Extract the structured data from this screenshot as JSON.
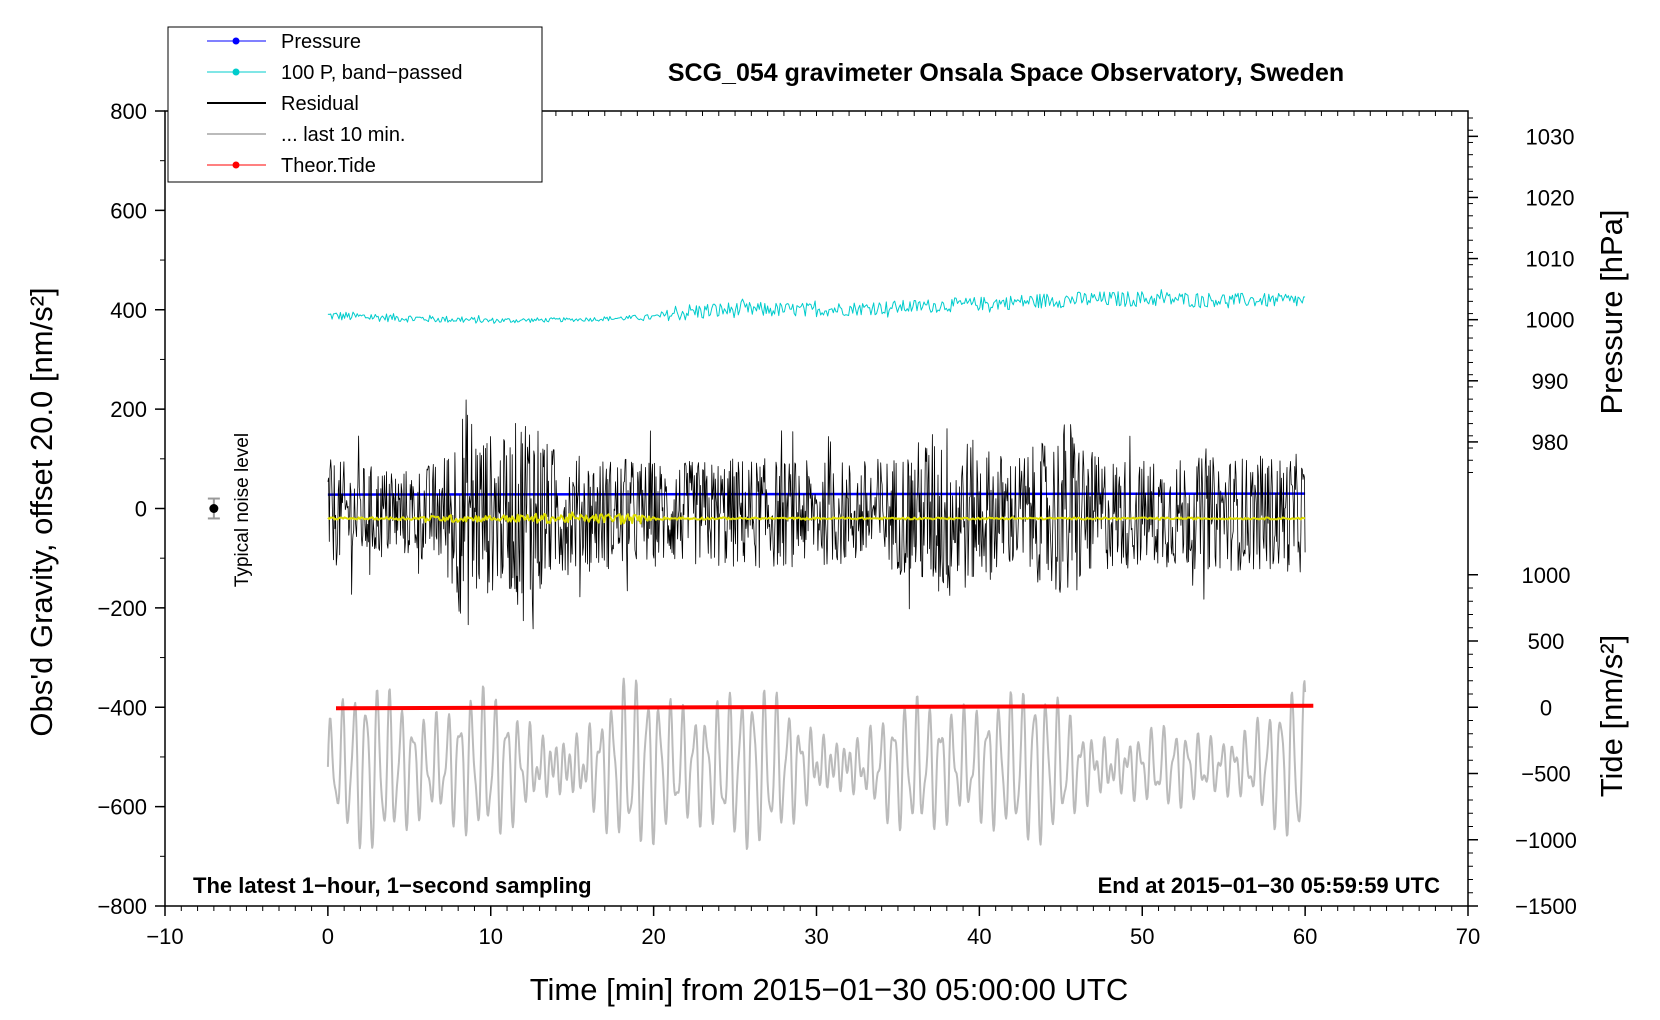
{
  "chart_data": {
    "type": "line",
    "title": "SCG_054 gravimeter Onsala Space Observatory, Sweden",
    "xlabel": "Time [min] from 2015−01−30 05:00:00 UTC",
    "ylabel_left": "Obs'd Gravity, offset 20.0 [nm/s²]",
    "ylabel_right_top": "Pressure [hPa]",
    "ylabel_right_bottom": "Tide [nm/s²]",
    "xlim": [
      -10,
      70
    ],
    "ylim_left": [
      -800,
      800
    ],
    "x_ticks": [
      -10,
      0,
      10,
      20,
      30,
      40,
      50,
      60,
      70
    ],
    "x_tick_labels": [
      "−10",
      "0",
      "10",
      "20",
      "30",
      "40",
      "50",
      "60",
      "70"
    ],
    "y_left_ticks": [
      800,
      600,
      400,
      200,
      0,
      -200,
      -400,
      -600,
      -800
    ],
    "y_left_tick_labels": [
      "800",
      "600",
      "400",
      "200",
      "0",
      "−200",
      "−400",
      "−600",
      "−800"
    ],
    "pressure_axis": {
      "ticks": [
        1030,
        1020,
        1010,
        1000,
        990,
        980
      ],
      "tick_labels": [
        "1030",
        "1020",
        "1010",
        "1000",
        "990",
        "980"
      ],
      "map_hpa": [
        1000,
        990
      ],
      "map_nm_s2": [
        380,
        257
      ]
    },
    "tide_axis": {
      "ticks": [
        1000,
        500,
        0,
        -500,
        -1000,
        -1500
      ],
      "tick_labels": [
        "1000",
        "500",
        "0",
        "−500",
        "−1000",
        "−1500"
      ],
      "map_tide": [
        0,
        -1500
      ],
      "map_nm_s2": [
        -400,
        -800
      ]
    },
    "legend": [
      {
        "label": "Pressure",
        "color": "#0000ff",
        "marker": true
      },
      {
        "label": "100 P, band−passed",
        "color": "#00cccc",
        "marker": true
      },
      {
        "label": "Residual",
        "color": "#000000",
        "marker": false
      },
      {
        "label": "... last 10 min.",
        "color": "#bbbbbb",
        "marker": false
      },
      {
        "label": "Theor.Tide",
        "color": "#ff0000",
        "marker": true
      }
    ],
    "annotation_left": "The latest 1−hour, 1−second sampling",
    "annotation_right": "End at 2015−01−30 05:59:59 UTC",
    "noise_label": "Typical noise level",
    "noise_marker": {
      "x": -7,
      "y": 0,
      "err": 20
    },
    "series": [
      {
        "name": "Pressure",
        "color": "#0000ff",
        "width": 2.5,
        "x": [
          0,
          60
        ],
        "y": [
          28,
          30
        ]
      },
      {
        "name": "100 P, band−passed",
        "color": "#00cccc",
        "width": 1,
        "noisy": true,
        "x": [
          0,
          5,
          10,
          15,
          20,
          22,
          25,
          30,
          35,
          40,
          45,
          50,
          55,
          60
        ],
        "y": [
          388,
          383,
          378,
          380,
          385,
          395,
          400,
          400,
          405,
          412,
          420,
          422,
          420,
          418
        ],
        "amplitude": [
          10,
          8,
          6,
          4,
          6,
          18,
          16,
          14,
          14,
          14,
          16,
          16,
          14,
          14
        ]
      },
      {
        "name": "Residual",
        "color": "#000000",
        "width": 0.8,
        "noisy": true,
        "x": [
          0,
          2,
          5,
          7,
          8.5,
          9.5,
          11,
          12.5,
          13.5,
          15,
          17,
          19,
          22,
          25,
          28,
          30,
          33,
          35,
          38,
          39.5,
          42,
          44,
          45.5,
          47,
          50,
          55,
          60
        ],
        "y": [
          -10,
          -10,
          -10,
          -10,
          -10,
          -10,
          -10,
          -10,
          -10,
          -10,
          -10,
          -10,
          -10,
          -10,
          -10,
          -10,
          -10,
          -10,
          -10,
          -10,
          -10,
          -10,
          -10,
          -10,
          -10,
          -10,
          -10
        ],
        "amplitude": [
          110,
          100,
          90,
          110,
          240,
          170,
          150,
          250,
          140,
          120,
          115,
          110,
          105,
          115,
          110,
          105,
          110,
          120,
          190,
          150,
          115,
          145,
          200,
          120,
          110,
          115,
          120
        ]
      },
      {
        "name": "Residual smoothed",
        "color": "#dddd00",
        "width": 2,
        "noisy": true,
        "x": [
          0,
          5,
          8,
          10,
          13,
          16,
          18,
          20,
          25,
          30,
          40,
          50,
          60
        ],
        "y": [
          -20,
          -20,
          -20,
          -20,
          -20,
          -20,
          -20,
          -20,
          -20,
          -20,
          -20,
          -20,
          -20
        ],
        "amplitude": [
          2,
          3,
          8,
          6,
          10,
          8,
          12,
          3,
          2,
          2,
          2,
          2,
          2
        ]
      },
      {
        "name": "... last 10 min.",
        "color": "#bbbbbb",
        "width": 2,
        "oscillating": true,
        "x": [
          0,
          3,
          6,
          9,
          12,
          15,
          18,
          21,
          24,
          27,
          30,
          33,
          36,
          39,
          42,
          45,
          48,
          51,
          54,
          57,
          60
        ],
        "y": [
          -520,
          -520,
          -520,
          -515,
          -520,
          -520,
          -515,
          -515,
          -520,
          -520,
          -515,
          -520,
          -520,
          -515,
          -515,
          -520,
          -520,
          -520,
          -520,
          -515,
          -520
        ],
        "amplitude": [
          130,
          150,
          140,
          170,
          150,
          160,
          180,
          150,
          160,
          150,
          150,
          130,
          160,
          170,
          130,
          140,
          130,
          110,
          100,
          120,
          140
        ]
      },
      {
        "name": "Theor.Tide",
        "color": "#ff0000",
        "width": 4,
        "x": [
          0.5,
          60.5
        ],
        "y": [
          -402,
          -397
        ]
      }
    ]
  }
}
